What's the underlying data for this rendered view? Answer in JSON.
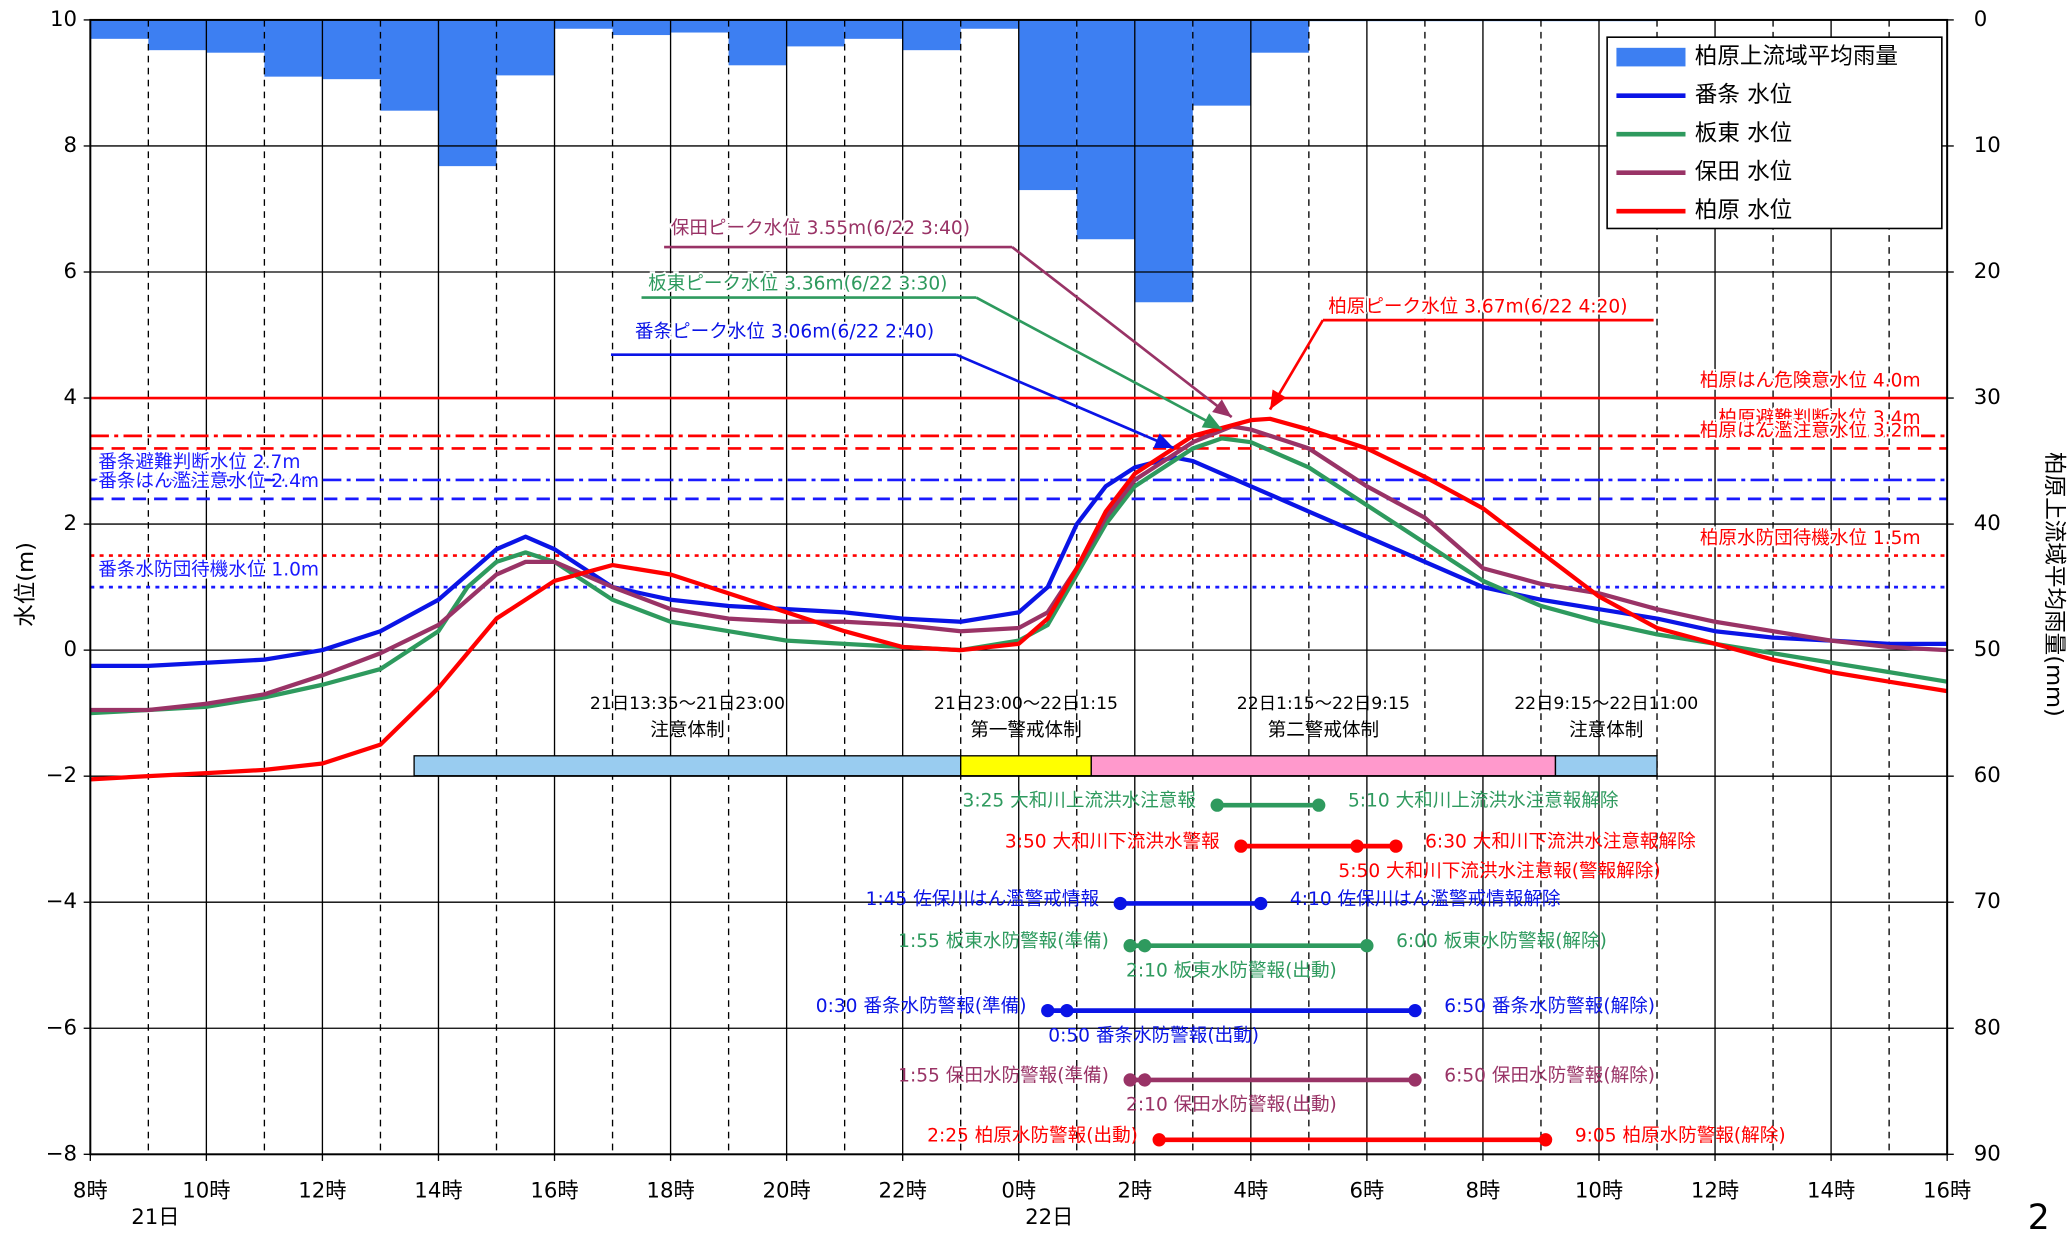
{
  "chart_data": {
    "type": "line",
    "xlim": [
      8,
      40
    ],
    "xticks": [
      {
        "value": 8,
        "label": "8時"
      },
      {
        "value": 10,
        "label": "10時"
      },
      {
        "value": 12,
        "label": "12時"
      },
      {
        "value": 14,
        "label": "14時"
      },
      {
        "value": 16,
        "label": "16時"
      },
      {
        "value": 18,
        "label": "18時"
      },
      {
        "value": 20,
        "label": "20時"
      },
      {
        "value": 22,
        "label": "22時"
      },
      {
        "value": 24,
        "label": "0時"
      },
      {
        "value": 26,
        "label": "2時"
      },
      {
        "value": 28,
        "label": "4時"
      },
      {
        "value": 30,
        "label": "6時"
      },
      {
        "value": 32,
        "label": "8時"
      },
      {
        "value": 34,
        "label": "10時"
      },
      {
        "value": 36,
        "label": "12時"
      },
      {
        "value": 38,
        "label": "14時"
      },
      {
        "value": 40,
        "label": "16時"
      }
    ],
    "date_labels": [
      "21日",
      "22日"
    ],
    "ylim": [
      -8,
      10
    ],
    "yticks": [
      {
        "value": -8,
        "label": "−8"
      },
      {
        "value": -6,
        "label": "−6"
      },
      {
        "value": -4,
        "label": "−4"
      },
      {
        "value": -2,
        "label": "−2"
      },
      0,
      2,
      4,
      6,
      8,
      10
    ],
    "y2lim": [
      0,
      90
    ],
    "y2_inverted": true,
    "y2ticks": [
      0,
      10,
      20,
      30,
      40,
      50,
      60,
      70,
      80,
      90
    ],
    "ylabel": "水位(m)",
    "y2label": "柏原上流域平均雨量(mm)",
    "grid": true,
    "legend": "upper right",
    "series": [
      {
        "name": "柏原上流域平均雨量",
        "type": "bar",
        "axis": "y2",
        "color": "#3d7ff2",
        "bins": [
          8,
          9,
          10,
          11,
          12,
          13,
          14,
          15,
          16,
          17,
          18,
          19,
          20,
          21,
          22,
          23,
          24,
          25,
          26,
          27,
          28,
          29,
          30,
          31,
          32,
          33,
          34,
          35
        ],
        "values": [
          1.5,
          2.4,
          2.6,
          4.5,
          4.7,
          7.2,
          11.6,
          4.4,
          0.7,
          1.2,
          1.0,
          3.6,
          2.1,
          1.5,
          2.4,
          0.7,
          13.5,
          17.4,
          22.4,
          6.8,
          2.6,
          0.1,
          0.1,
          0.1,
          0.1,
          0.1,
          0.1
        ]
      },
      {
        "name": "番条 水位",
        "color": "#0a14e6",
        "peak_label": "番条ピーク水位 3.06m(6/22 2:40)",
        "x": [
          8,
          9,
          10,
          11,
          12,
          13,
          14,
          15,
          15.5,
          16,
          17,
          18,
          19,
          20,
          21,
          22,
          23,
          24,
          24.5,
          25,
          25.5,
          26,
          26.67,
          27,
          28,
          29,
          30,
          31,
          32,
          33,
          34,
          35,
          36,
          37,
          38,
          39,
          40
        ],
        "values": [
          -0.25,
          -0.25,
          -0.2,
          -0.15,
          0.0,
          0.3,
          0.8,
          1.6,
          1.8,
          1.6,
          1.0,
          0.8,
          0.7,
          0.65,
          0.6,
          0.5,
          0.45,
          0.6,
          1.0,
          2.0,
          2.6,
          2.9,
          3.06,
          3.0,
          2.6,
          2.2,
          1.8,
          1.4,
          1.0,
          0.8,
          0.65,
          0.5,
          0.3,
          0.2,
          0.15,
          0.1,
          0.1
        ]
      },
      {
        "name": "板東 水位",
        "color": "#2e9a5e",
        "peak_label": "板東ピーク水位 3.36m(6/22 3:30)",
        "x": [
          8,
          9,
          10,
          11,
          12,
          13,
          14,
          14.5,
          15,
          15.5,
          16,
          17,
          18,
          19,
          20,
          21,
          22,
          23,
          24,
          24.5,
          25,
          25.5,
          26,
          27,
          27.5,
          28,
          29,
          30,
          31,
          32,
          33,
          34,
          35,
          36,
          37,
          38,
          39,
          40
        ],
        "values": [
          -1.0,
          -0.95,
          -0.9,
          -0.75,
          -0.55,
          -0.3,
          0.3,
          1.0,
          1.4,
          1.55,
          1.4,
          0.8,
          0.45,
          0.3,
          0.15,
          0.1,
          0.05,
          0.0,
          0.15,
          0.4,
          1.2,
          2.0,
          2.6,
          3.2,
          3.36,
          3.3,
          2.9,
          2.3,
          1.7,
          1.1,
          0.7,
          0.45,
          0.25,
          0.1,
          -0.05,
          -0.2,
          -0.35,
          -0.5
        ]
      },
      {
        "name": "保田 水位",
        "color": "#993366",
        "peak_label": "保田ピーク水位 3.55m(6/22 3:40)",
        "x": [
          8,
          9,
          10,
          11,
          12,
          13,
          14,
          15,
          15.5,
          16,
          17,
          18,
          19,
          20,
          21,
          22,
          23,
          24,
          24.5,
          25,
          25.5,
          26,
          27,
          27.67,
          28,
          29,
          30,
          31,
          32,
          33,
          34,
          35,
          36,
          37,
          38,
          39,
          40
        ],
        "values": [
          -0.95,
          -0.95,
          -0.85,
          -0.7,
          -0.4,
          -0.05,
          0.4,
          1.2,
          1.4,
          1.4,
          1.0,
          0.65,
          0.5,
          0.45,
          0.45,
          0.4,
          0.3,
          0.35,
          0.6,
          1.3,
          2.1,
          2.7,
          3.3,
          3.55,
          3.5,
          3.2,
          2.6,
          2.1,
          1.3,
          1.05,
          0.9,
          0.65,
          0.45,
          0.3,
          0.15,
          0.05,
          0.0
        ]
      },
      {
        "name": "柏原 水位",
        "color": "#ff0000",
        "peak_label": "柏原ピーク水位 3.67m(6/22 4:20)",
        "x": [
          8,
          9,
          10,
          11,
          12,
          13,
          14,
          15,
          16,
          17,
          18,
          19,
          20,
          21,
          22,
          23,
          24,
          24.5,
          25,
          25.5,
          26,
          27,
          28,
          28.33,
          29,
          30,
          31,
          32,
          33,
          34,
          35,
          36,
          37,
          38,
          39,
          40
        ],
        "values": [
          -2.05,
          -2.0,
          -1.95,
          -1.9,
          -1.8,
          -1.5,
          -0.6,
          0.5,
          1.1,
          1.35,
          1.2,
          0.9,
          0.6,
          0.3,
          0.05,
          0.0,
          0.1,
          0.5,
          1.3,
          2.2,
          2.8,
          3.4,
          3.65,
          3.67,
          3.5,
          3.2,
          2.75,
          2.25,
          1.55,
          0.85,
          0.35,
          0.1,
          -0.15,
          -0.35,
          -0.5,
          -0.65
        ]
      }
    ],
    "thresholds": [
      {
        "label": "柏原はん危険意水位 4.0m",
        "value": 4.0,
        "color": "#ff0000",
        "style": "solid",
        "side": "right"
      },
      {
        "label": "柏原避難判断水位 3.4m",
        "value": 3.4,
        "color": "#ff0000",
        "style": "dashdot",
        "side": "right"
      },
      {
        "label": "柏原はん濫注意水位 3.2m",
        "value": 3.2,
        "color": "#ff0000",
        "style": "dashed",
        "side": "right"
      },
      {
        "label": "柏原水防団待機水位 1.5m",
        "value": 1.5,
        "color": "#ff0000",
        "style": "dotted",
        "side": "right"
      },
      {
        "label": "番条避難判断水位 2.7m",
        "value": 2.7,
        "color": "#1a1aff",
        "style": "dashdot",
        "side": "left"
      },
      {
        "label": "番条はん濫注意水位 2.4m",
        "value": 2.4,
        "color": "#1a1aff",
        "style": "dashed",
        "side": "left"
      },
      {
        "label": "番条水防団待機水位 1.0m",
        "value": 1.0,
        "color": "#1a1aff",
        "style": "dotted",
        "side": "left"
      }
    ],
    "phases": [
      {
        "period": "21日13:35～21日23:00",
        "name": "注意体制",
        "start": 13.58,
        "end": 23,
        "color": "#99ccf0"
      },
      {
        "period": "21日23:00～22日1:15",
        "name": "第一警戒体制",
        "start": 23,
        "end": 25.25,
        "color": "#ffff00"
      },
      {
        "period": "22日1:15～22日9:15",
        "name": "第二警戒体制",
        "start": 25.25,
        "end": 33.25,
        "color": "#ff99cc"
      },
      {
        "period": "22日9:15～22日11:00",
        "name": "注意体制",
        "start": 33.25,
        "end": 35,
        "color": "#99ccf0"
      }
    ],
    "alerts": [
      {
        "color": "#2e9a5e",
        "level": -2.46,
        "events": [
          {
            "time": 27.42,
            "label": "3:25  大和川上流洪水注意報"
          },
          {
            "time": 29.17,
            "label": "5:10  大和川上流洪水注意報解除"
          }
        ]
      },
      {
        "color": "#ff0000",
        "level": -3.11,
        "events": [
          {
            "time": 27.83,
            "label": "3:50  大和川下流洪水警報"
          },
          {
            "time": 29.83,
            "label": "5:50  大和川下流洪水注意報(警報解除)"
          },
          {
            "time": 30.5,
            "label": "6:30  大和川下流洪水注意報解除"
          }
        ]
      },
      {
        "color": "#0a14e6",
        "level": -4.02,
        "events": [
          {
            "time": 25.75,
            "label": "1:45  佐保川はん濫警戒情報"
          },
          {
            "time": 28.17,
            "label": "4:10  佐保川はん濫警戒情報解除"
          }
        ]
      },
      {
        "color": "#2e9a5e",
        "level": -4.69,
        "events": [
          {
            "time": 25.92,
            "label": "1:55  板東水防警報(準備)"
          },
          {
            "time": 26.17,
            "label": "2:10  板東水防警報(出動)"
          },
          {
            "time": 30.0,
            "label": "6:00  板東水防警報(解除)"
          }
        ]
      },
      {
        "color": "#0a14e6",
        "level": -5.72,
        "events": [
          {
            "time": 24.5,
            "label": "0:30  番条水防警報(準備)"
          },
          {
            "time": 24.83,
            "label": "0:50  番条水防警報(出動)"
          },
          {
            "time": 30.83,
            "label": "6:50  番条水防警報(解除)"
          }
        ]
      },
      {
        "color": "#993366",
        "level": -6.82,
        "events": [
          {
            "time": 25.92,
            "label": "1:55  保田水防警報(準備)"
          },
          {
            "time": 26.17,
            "label": "2:10  保田水防警報(出動)"
          },
          {
            "time": 30.83,
            "label": "6:50  保田水防警報(解除)"
          }
        ]
      },
      {
        "color": "#ff0000",
        "level": -7.77,
        "events": [
          {
            "time": 26.42,
            "label": "2:25  柏原水防警報(出動)"
          },
          {
            "time": 33.08,
            "label": "9:05  柏原水防警報(解除)"
          }
        ]
      }
    ]
  },
  "page_number": "2"
}
